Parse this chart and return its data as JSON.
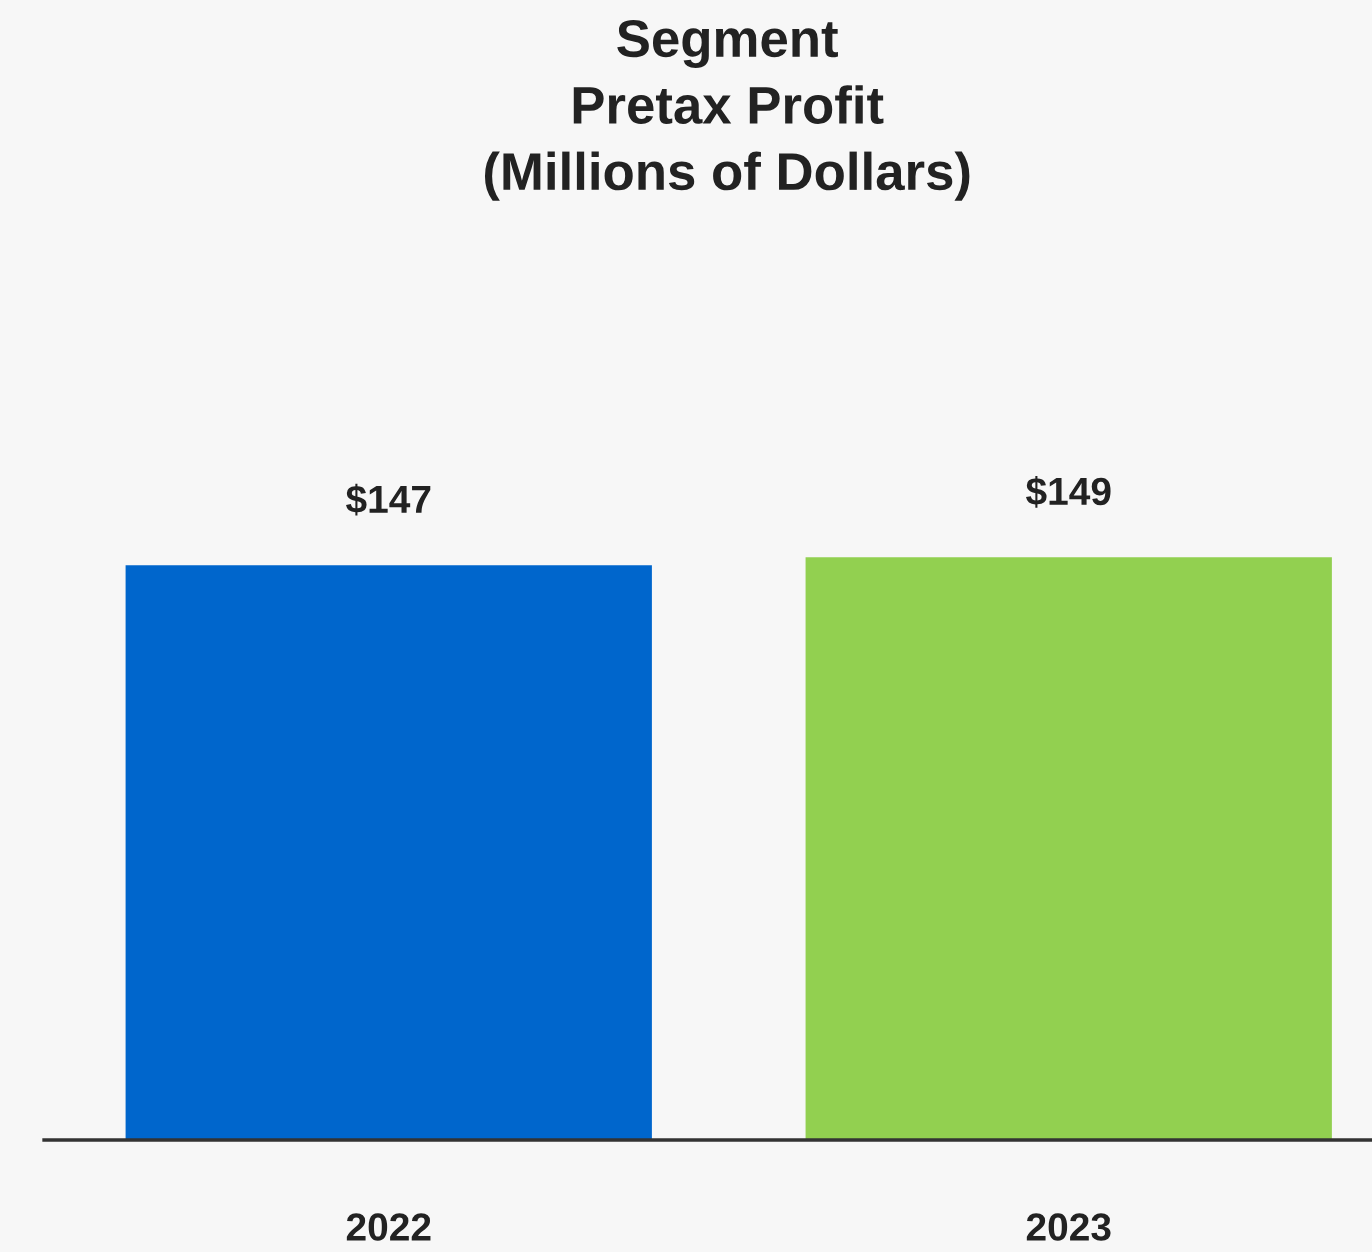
{
  "chart_data": {
    "type": "bar",
    "title": "Segment\nPretax Profit\n(Millions of Dollars)",
    "categories": [
      "2022",
      "2023"
    ],
    "values": [
      147,
      149
    ],
    "colors": [
      "#0066cc",
      "#92d050"
    ],
    "value_labels": [
      "$147",
      "$149"
    ],
    "grid": false,
    "legend": false
  }
}
